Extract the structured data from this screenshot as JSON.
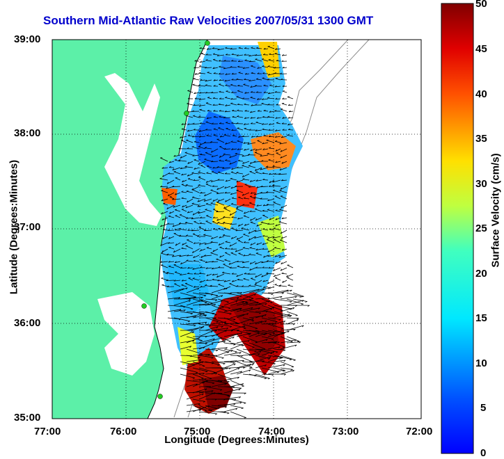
{
  "title": "Southern Mid-Atlantic Raw Velocities 2007/05/31 1300 GMT",
  "xlabel": "Longitude (Degrees:Minutes)",
  "ylabel": "Latitude (Degrees:Minutes)",
  "colorbar_label": "Surface Velocity (cm/s)",
  "x_ticks": [
    "77:00",
    "76:00",
    "75:00",
    "74:00",
    "73:00",
    "72:00"
  ],
  "y_ticks": [
    "39:00",
    "38:00",
    "37:00",
    "36:00",
    "35:00"
  ],
  "colorbar_ticks": [
    "50",
    "45",
    "40",
    "35",
    "30",
    "25",
    "20",
    "15",
    "10",
    "5",
    "0"
  ],
  "colors": {
    "land": "#5cf0a8",
    "title": "#0000cc",
    "coast": "#000000",
    "bathymetry": "#8c8c8c",
    "station": "#22cc22"
  },
  "colorbar_range": [
    0,
    50
  ]
}
